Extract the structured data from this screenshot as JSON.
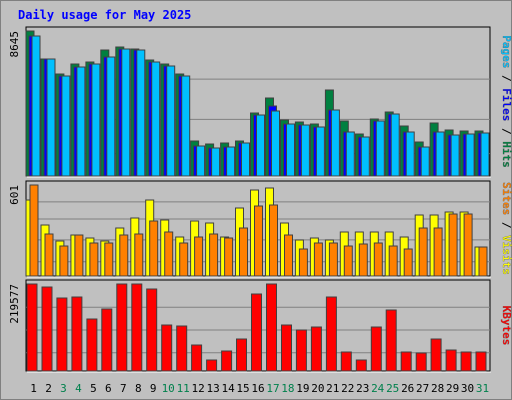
{
  "chart_data": [
    {
      "type": "bar",
      "title": "Daily usage for May 2025",
      "panel": "hits-files-pages",
      "ymax_label": "8645",
      "ymax": 8645,
      "legend": [
        "Pages",
        "Files",
        "Hits"
      ],
      "categories": [
        "1",
        "2",
        "3",
        "4",
        "5",
        "6",
        "7",
        "8",
        "9",
        "10",
        "11",
        "12",
        "13",
        "14",
        "15",
        "16",
        "17",
        "18",
        "19",
        "20",
        "21",
        "22",
        "23",
        "24",
        "25",
        "26",
        "27",
        "28",
        "29",
        "30",
        "31"
      ],
      "series": [
        {
          "name": "Hits",
          "color": "#008040",
          "values": [
            8645,
            7000,
            6100,
            6700,
            6800,
            7500,
            7700,
            7600,
            6900,
            6700,
            6100,
            2100,
            1900,
            1950,
            2100,
            3750,
            4650,
            3350,
            3200,
            3100,
            5100,
            3300,
            2500,
            3400,
            3800,
            3000,
            2000,
            3150,
            2750,
            2700,
            2700
          ]
        },
        {
          "name": "Files",
          "color": "#0000ff",
          "values": [
            8350,
            6950,
            5950,
            6500,
            6700,
            7100,
            7600,
            7500,
            6800,
            6550,
            5950,
            1800,
            1650,
            1750,
            1950,
            3650,
            4150,
            3100,
            3050,
            2950,
            3950,
            2600,
            2350,
            3300,
            3700,
            2650,
            1700,
            2600,
            2450,
            2500,
            2550
          ]
        },
        {
          "name": "Pages",
          "color": "#00c0ff",
          "values": [
            8350,
            6950,
            5950,
            6500,
            6700,
            7100,
            7600,
            7500,
            6800,
            6550,
            5950,
            1800,
            1650,
            1750,
            1950,
            3650,
            3900,
            3100,
            3050,
            2950,
            3950,
            2600,
            2350,
            3300,
            3700,
            2650,
            1700,
            2600,
            2450,
            2500,
            2550
          ]
        }
      ]
    },
    {
      "type": "bar",
      "panel": "visits-sites",
      "ymax_label": "601",
      "ymax": 601,
      "legend": [
        "Sites",
        "Visits"
      ],
      "categories": [
        "1",
        "2",
        "3",
        "4",
        "5",
        "6",
        "7",
        "8",
        "9",
        "10",
        "11",
        "12",
        "13",
        "14",
        "15",
        "16",
        "17",
        "18",
        "19",
        "20",
        "21",
        "22",
        "23",
        "24",
        "25",
        "26",
        "27",
        "28",
        "29",
        "30",
        "31"
      ],
      "series": [
        {
          "name": "Visits",
          "color": "#ffff00",
          "values": [
            500,
            340,
            230,
            270,
            250,
            230,
            320,
            380,
            500,
            370,
            260,
            360,
            350,
            260,
            450,
            570,
            580,
            350,
            240,
            250,
            240,
            290,
            290,
            290,
            290,
            260,
            400,
            400,
            420,
            420,
            190
          ]
        },
        {
          "name": "Sites",
          "color": "#ff8000",
          "values": [
            601,
            280,
            200,
            270,
            220,
            220,
            270,
            280,
            360,
            290,
            220,
            260,
            280,
            250,
            320,
            460,
            470,
            270,
            180,
            220,
            220,
            200,
            210,
            220,
            200,
            180,
            320,
            320,
            410,
            410,
            190
          ]
        }
      ]
    },
    {
      "type": "bar",
      "panel": "kbytes",
      "ymax_label": "219577",
      "ymax": 219577,
      "legend": [
        "KBytes"
      ],
      "categories": [
        "1",
        "2",
        "3",
        "4",
        "5",
        "6",
        "7",
        "8",
        "9",
        "10",
        "11",
        "12",
        "13",
        "14",
        "15",
        "16",
        "17",
        "18",
        "19",
        "20",
        "21",
        "22",
        "23",
        "24",
        "25",
        "26",
        "27",
        "28",
        "29",
        "30",
        "31"
      ],
      "series": [
        {
          "name": "KBytes",
          "color": "#ff0000",
          "values": [
            219577,
            212000,
            184000,
            186000,
            130000,
            157000,
            219577,
            219577,
            207000,
            117000,
            113000,
            65000,
            28000,
            50000,
            82000,
            195000,
            219577,
            117000,
            103000,
            110000,
            187000,
            48000,
            27000,
            112000,
            153000,
            48000,
            45000,
            82000,
            54000,
            49000,
            48000
          ]
        }
      ]
    }
  ],
  "weekend_days": [
    "3",
    "4",
    "10",
    "11",
    "17",
    "18",
    "24",
    "25",
    "31"
  ],
  "colors": {
    "background": "#c0c0c0",
    "plot_bg": "#c0c0c0",
    "title_text": "#0000ff",
    "weekday_label": "#000000",
    "weekend_label": "#00804c",
    "gridline": "#808080",
    "hits": "#008040",
    "files": "#0000ff",
    "pages": "#00c0ff",
    "visits": "#ffff00",
    "sites": "#ff8000",
    "kbytes": "#ff0000"
  }
}
